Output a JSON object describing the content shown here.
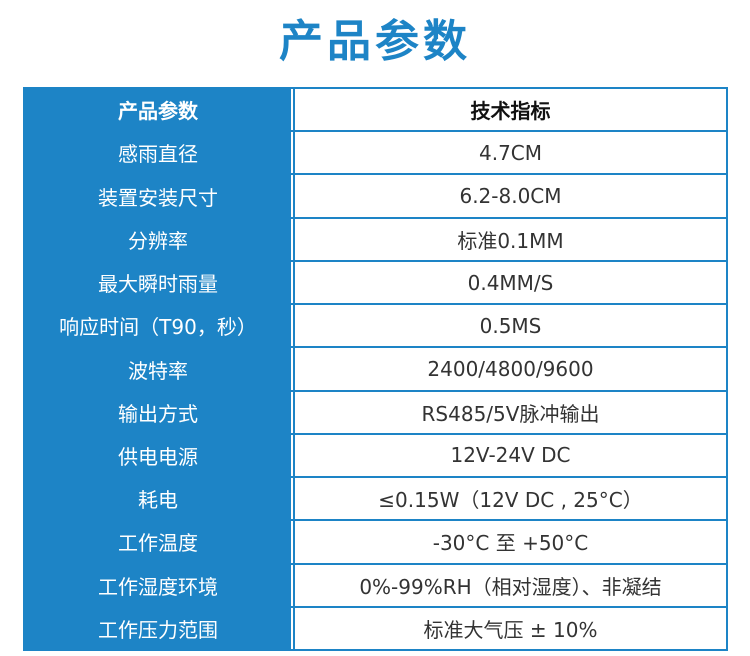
{
  "title": "产品参数",
  "header": {
    "label": "产品参数",
    "value": "技术指标"
  },
  "rows": [
    {
      "label": "感雨直径",
      "value": "4.7CM"
    },
    {
      "label": "装置安装尺寸",
      "value": "6.2-8.0CM"
    },
    {
      "label": "分辨率",
      "value": "标准0.1MM"
    },
    {
      "label": "最大瞬时雨量",
      "value": "0.4MM/S"
    },
    {
      "label": "响应时间（T90，秒）",
      "value": "0.5MS"
    },
    {
      "label": "波特率",
      "value": "2400/4800/9600"
    },
    {
      "label": "输出方式",
      "value": "RS485/5V脉冲输出"
    },
    {
      "label": "供电电源",
      "value": "12V-24V DC"
    },
    {
      "label": "耗电",
      "value": "≤0.15W（12V DC , 25°C）"
    },
    {
      "label": "工作温度",
      "value": "-30°C 至 +50°C"
    },
    {
      "label": "工作湿度环境",
      "value": "0%-99%RH（相对湿度）、非凝结"
    },
    {
      "label": "工作压力范围",
      "value": "标准大气压 ± 10%"
    }
  ],
  "colors": {
    "accent": "#1d84c6",
    "text": "#333333",
    "background": "#ffffff"
  }
}
